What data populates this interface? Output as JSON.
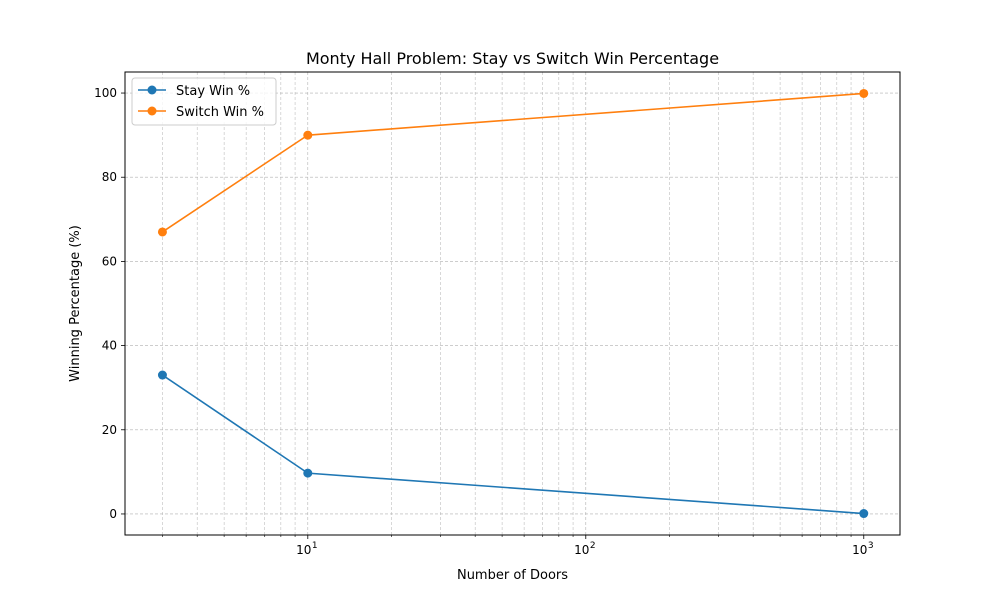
{
  "chart_data": {
    "type": "line",
    "title": "Monty Hall Problem: Stay vs Switch Win Percentage",
    "xlabel": "Number of Doors",
    "ylabel": "Winning Percentage (%)",
    "x_scale": "log",
    "x": [
      3,
      10,
      1000
    ],
    "xlim": [
      2.2,
      1350
    ],
    "ylim": [
      -5,
      105
    ],
    "x_ticks": [
      {
        "value": 10,
        "base": "10",
        "exp": "1"
      },
      {
        "value": 100,
        "base": "10",
        "exp": "2"
      },
      {
        "value": 1000,
        "base": "10",
        "exp": "3"
      }
    ],
    "y_ticks": [
      0,
      20,
      40,
      60,
      80,
      100
    ],
    "y_tick_labels": [
      "0",
      "20",
      "40",
      "60",
      "80",
      "100"
    ],
    "grid": true,
    "legend_position": "top-left",
    "series": [
      {
        "name": "Stay Win %",
        "color": "#1f77b4",
        "values": [
          33.0,
          9.7,
          0.1
        ]
      },
      {
        "name": "Switch Win %",
        "color": "#ff7f0e",
        "values": [
          67.0,
          90.0,
          99.9
        ]
      }
    ]
  }
}
